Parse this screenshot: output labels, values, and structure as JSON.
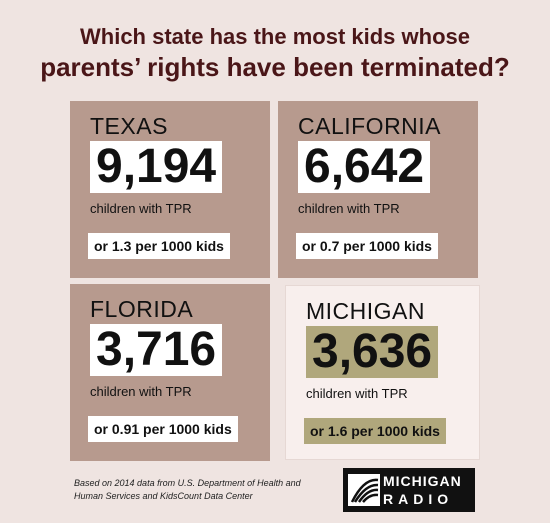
{
  "header": {
    "title_lines": [
      "Which state has the most kids whose",
      "parents’ rights have been terminated?"
    ]
  },
  "cards": [
    {
      "state": "TEXAS",
      "count": "9,194",
      "count_label": "children with TPR",
      "rate": "or 1.3 per 1000 kids"
    },
    {
      "state": "CALIFORNIA",
      "count": "6,642",
      "count_label": "children with TPR",
      "rate": "or 0.7 per 1000 kids"
    },
    {
      "state": "FLORIDA",
      "count": "3,716",
      "count_label": "children with TPR",
      "rate": "or 0.91 per 1000 kids"
    },
    {
      "state": "MICHIGAN",
      "count": "3,636",
      "count_label": "children with TPR",
      "rate": "or 1.6 per 1000 kids"
    }
  ],
  "footer": {
    "source_lines": [
      "Based on 2014 data from U.S. Department of Health and",
      "Human Services and KidsCount Data Center"
    ]
  },
  "logo": {
    "lines": [
      "MICHIGAN",
      "RADIO"
    ]
  }
}
